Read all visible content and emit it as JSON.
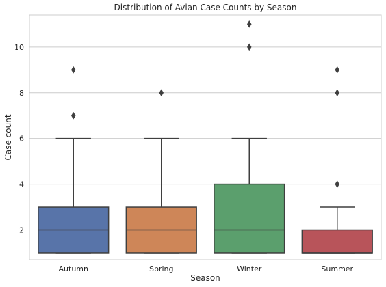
{
  "chart_data": {
    "type": "box",
    "title": "Distribution of Avian Case Counts by Season",
    "xlabel": "Season",
    "ylabel": "Case count",
    "categories": [
      "Autumn",
      "Spring",
      "Winter",
      "Summer"
    ],
    "ylim": [
      0.7,
      11.4
    ],
    "yticks": [
      2,
      4,
      6,
      8,
      10
    ],
    "grid": "horizontal",
    "boxes": [
      {
        "category": "Autumn",
        "whisker_low": 1,
        "q1": 1,
        "median": 2,
        "q3": 3,
        "whisker_high": 6,
        "outliers": [
          7,
          9
        ],
        "color": "#5874a9"
      },
      {
        "category": "Spring",
        "whisker_low": 1,
        "q1": 1,
        "median": 2,
        "q3": 3,
        "whisker_high": 6,
        "outliers": [
          8
        ],
        "color": "#ce8658"
      },
      {
        "category": "Winter",
        "whisker_low": 1,
        "q1": 1,
        "median": 2,
        "q3": 4,
        "whisker_high": 6,
        "outliers": [
          10,
          11
        ],
        "color": "#5b9f6d"
      },
      {
        "category": "Summer",
        "whisker_low": 1,
        "q1": 1,
        "median": 1,
        "q3": 2,
        "whisker_high": 3,
        "outliers": [
          4,
          8,
          9
        ],
        "color": "#b8545a"
      }
    ]
  }
}
